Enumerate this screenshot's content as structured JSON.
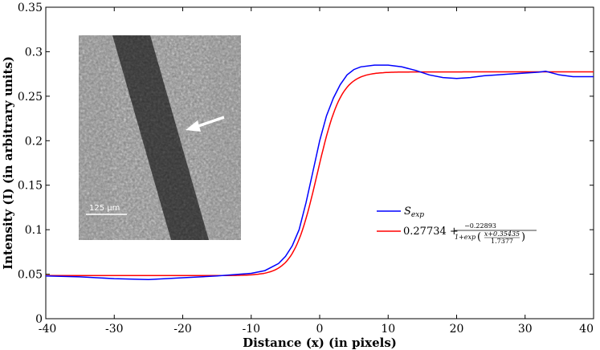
{
  "chart_data": {
    "type": "line",
    "xlabel": "Distance (x) (in pixels)",
    "ylabel": "Intensity (I) (in arbitrary units)",
    "xlim": [
      -40,
      40
    ],
    "ylim": [
      0,
      0.35
    ],
    "x_ticks": [
      "-40",
      "-30",
      "-20",
      "-10",
      "0",
      "10",
      "20",
      "30",
      "40"
    ],
    "y_ticks": [
      "0",
      "0.05",
      "0.1",
      "0.15",
      "0.2",
      "0.25",
      "0.3",
      "0.35"
    ],
    "grid": false,
    "legend_position": "lower-right",
    "series": [
      {
        "name": "S_exp",
        "color": "#0000ff",
        "x": [
          -40,
          -35,
          -30,
          -25,
          -20,
          -15,
          -10,
          -8,
          -6,
          -5,
          -4,
          -3,
          -2,
          -1,
          0,
          1,
          2,
          3,
          4,
          5,
          6,
          8,
          10,
          12,
          14,
          16,
          18,
          20,
          22,
          24,
          26,
          28,
          30,
          32,
          33,
          35,
          37,
          40
        ],
        "y": [
          0.048,
          0.047,
          0.045,
          0.044,
          0.046,
          0.048,
          0.051,
          0.054,
          0.062,
          0.07,
          0.082,
          0.1,
          0.13,
          0.165,
          0.2,
          0.228,
          0.248,
          0.263,
          0.274,
          0.28,
          0.283,
          0.285,
          0.285,
          0.283,
          0.279,
          0.274,
          0.271,
          0.27,
          0.271,
          0.273,
          0.274,
          0.275,
          0.276,
          0.277,
          0.278,
          0.274,
          0.272,
          0.272
        ]
      },
      {
        "name": "fit",
        "color": "#ff0000",
        "formula": {
          "a": 0.27734,
          "b": -0.22893,
          "c": 0.35435,
          "d": 1.7377
        }
      }
    ],
    "legend": {
      "s_exp_base": "S",
      "s_exp_sub": "exp",
      "fit_prefix": "0.27734 +",
      "fit_numerator": "−0.22893",
      "fit_denominator_lead": "1+exp",
      "fit_inner_numerator": "x+0.35435",
      "fit_inner_denominator": "1.7377"
    }
  },
  "inset": {
    "scale_label": "125 µm"
  }
}
